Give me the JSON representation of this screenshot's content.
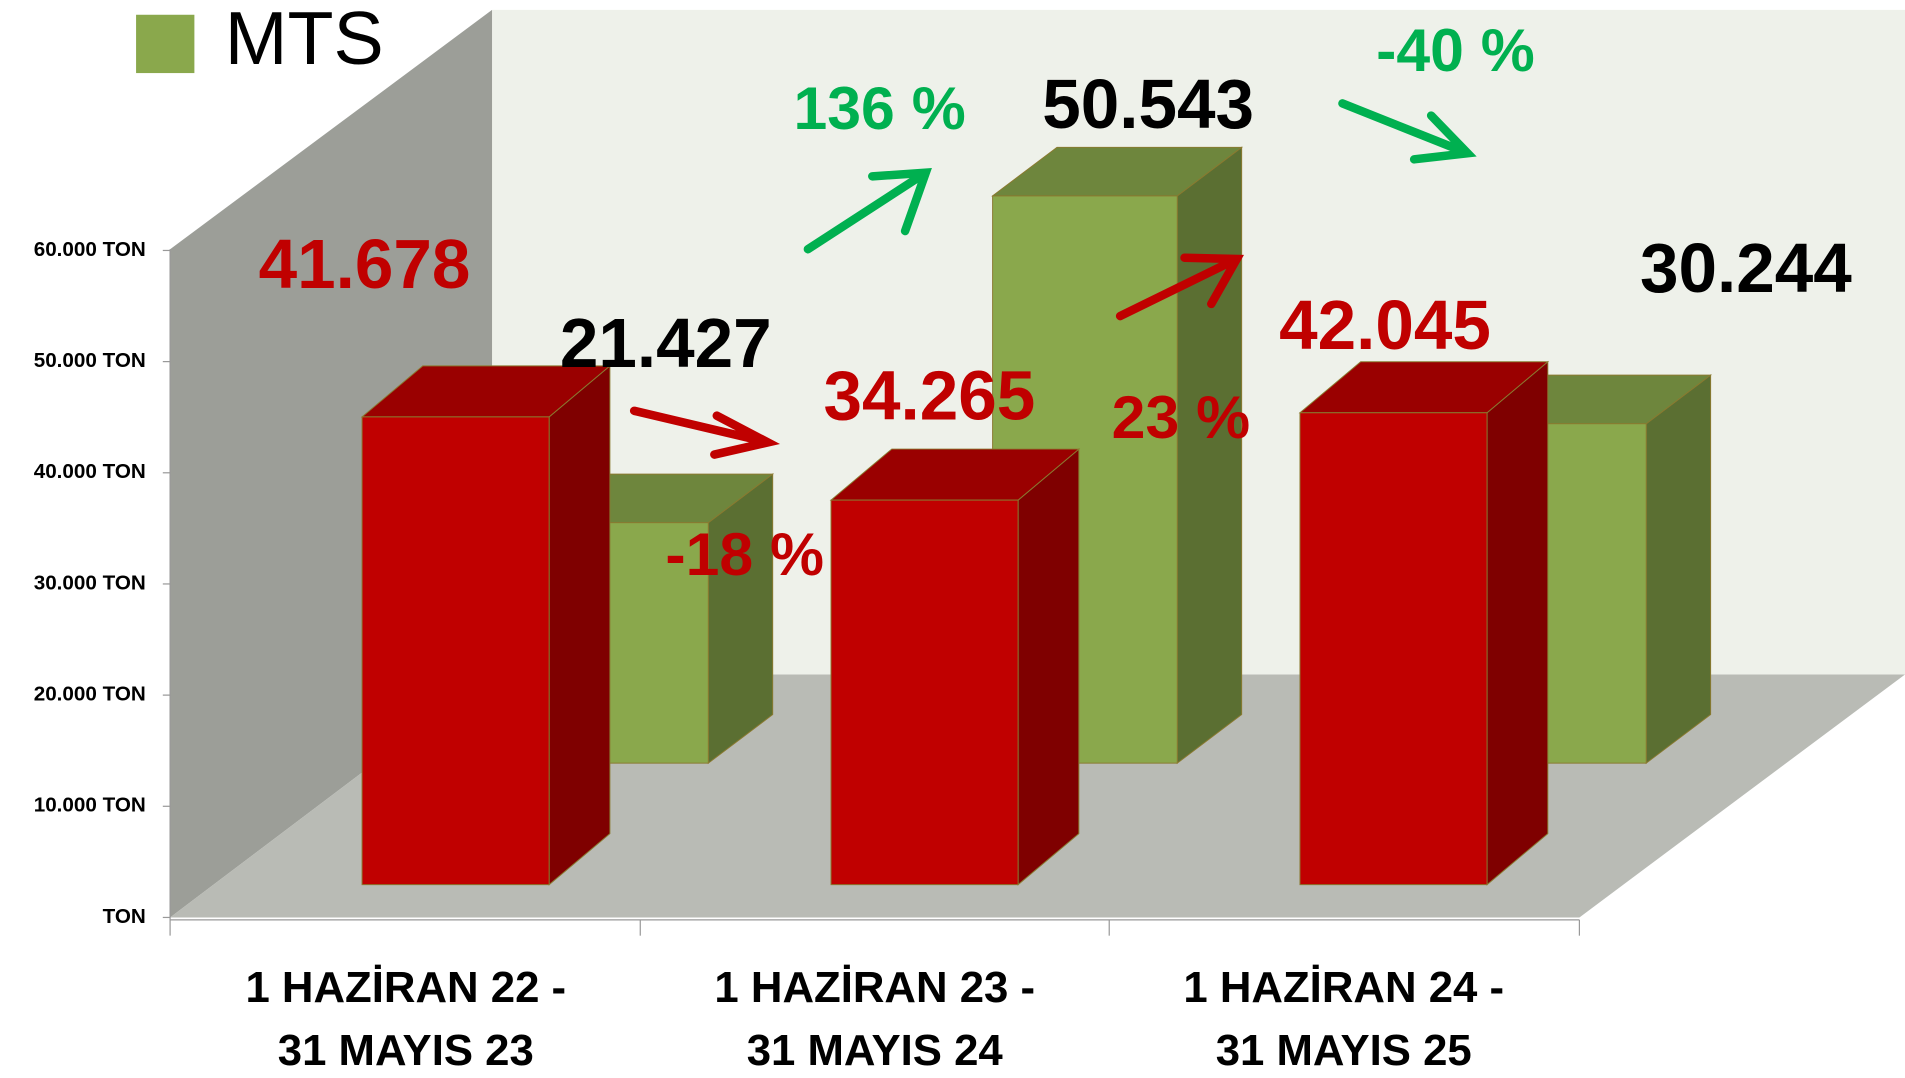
{
  "chart_data": {
    "type": "bar3d",
    "categories": [
      [
        "1 HAZİRAN 22 -",
        "31 MAYIS 23"
      ],
      [
        "1 HAZİRAN 23 -",
        "31 MAYIS 24"
      ],
      [
        "1 HAZİRAN 24 -",
        "31 MAYIS 25"
      ]
    ],
    "series": [
      {
        "color": "#c00000",
        "values": [
          41678,
          34265,
          42045
        ],
        "value_labels": [
          "41.678",
          "34.265",
          "42.045"
        ],
        "label_color": "#c00000"
      },
      {
        "name": "MTS",
        "color": "#8aa84c",
        "values": [
          21427,
          50543,
          30244
        ],
        "value_labels": [
          "21.427",
          "50.543",
          "30.244"
        ],
        "label_color": "#000000"
      }
    ],
    "ylim": [
      0,
      60000
    ],
    "yticks": [
      {
        "value": 0,
        "label": "TON"
      },
      {
        "value": 10000,
        "label": "10.000 TON"
      },
      {
        "value": 20000,
        "label": "20.000 TON"
      },
      {
        "value": 30000,
        "label": "30.000 TON"
      },
      {
        "value": 40000,
        "label": "40.000 TON"
      },
      {
        "value": 50000,
        "label": "50.000 TON"
      },
      {
        "value": 60000,
        "label": "60.000 TON"
      }
    ],
    "annotations": [
      {
        "text": "-18 %",
        "color": "#c00000"
      },
      {
        "text": "136 %",
        "color": "#00b050"
      },
      {
        "text": "23 %",
        "color": "#c00000"
      },
      {
        "text": "-40 %",
        "color": "#00b050"
      }
    ]
  }
}
